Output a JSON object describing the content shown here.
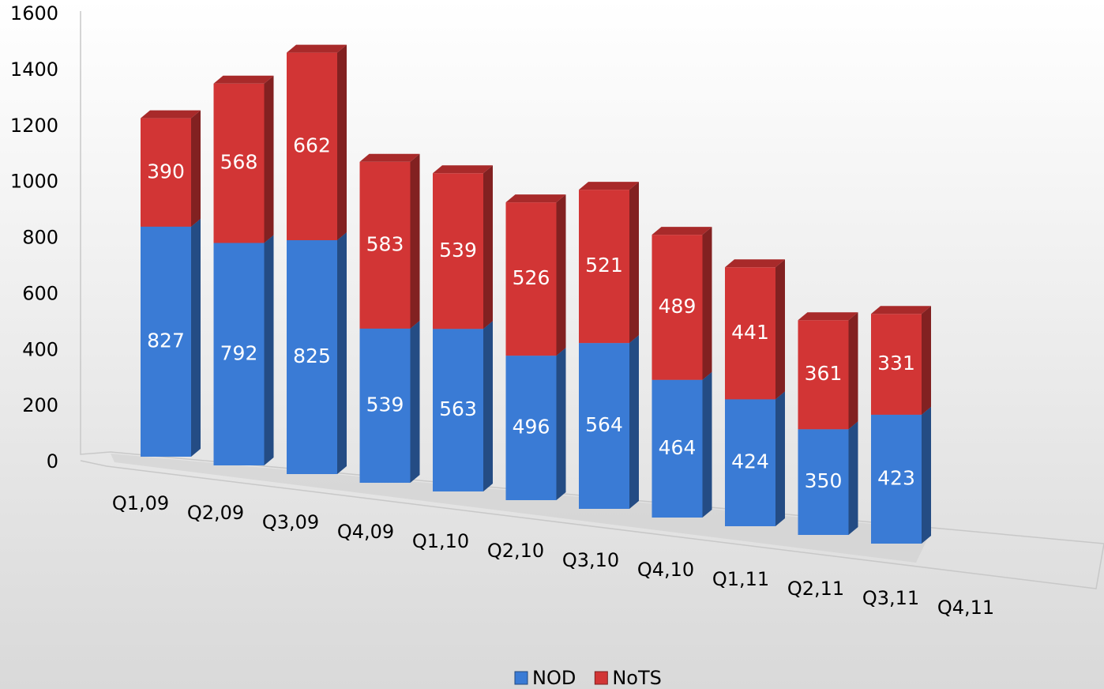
{
  "chart_data": {
    "type": "bar3d_stacked",
    "categories": [
      "Q1,09",
      "Q2,09",
      "Q3,09",
      "Q4,09",
      "Q1,10",
      "Q2,10",
      "Q3,10",
      "Q4,10",
      "Q1,11",
      "Q2,11",
      "Q3,11",
      "Q4,11"
    ],
    "series": [
      {
        "name": "NOD",
        "color": "#3a7bd5",
        "values": [
          827,
          792,
          825,
          539,
          563,
          496,
          564,
          464,
          424,
          350,
          423,
          null
        ]
      },
      {
        "name": "NoTS",
        "color": "#d23535",
        "values": [
          390,
          568,
          662,
          583,
          539,
          526,
          521,
          489,
          441,
          361,
          331,
          null
        ]
      }
    ],
    "ylim": [
      0,
      1600
    ],
    "yticks": [
      0,
      200,
      400,
      600,
      800,
      1000,
      1200,
      1400,
      1600
    ],
    "legend": "bottom"
  }
}
